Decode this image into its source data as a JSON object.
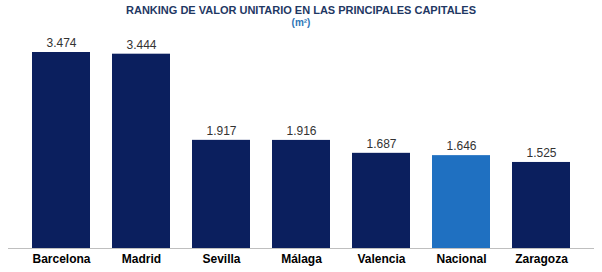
{
  "chart_data": {
    "type": "bar",
    "title": "RANKING DE VALOR UNITARIO EN LAS PRINCIPALES CAPITALES",
    "subtitle": "(m²)",
    "categories": [
      "Barcelona",
      "Madrid",
      "Sevilla",
      "Málaga",
      "Valencia",
      "Nacional",
      "Zaragoza"
    ],
    "values": [
      3474,
      3444,
      1917,
      1916,
      1687,
      1646,
      1525
    ],
    "value_labels": [
      "3.474",
      "3.444",
      "1.917",
      "1.916",
      "1.687",
      "1.646",
      "1.525"
    ],
    "colors": [
      "#0b1f5e",
      "#0b1f5e",
      "#0b1f5e",
      "#0b1f5e",
      "#0b1f5e",
      "#1f70c1",
      "#0b1f5e"
    ],
    "data_labels": true,
    "tick_labels": "x",
    "grid": false
  }
}
